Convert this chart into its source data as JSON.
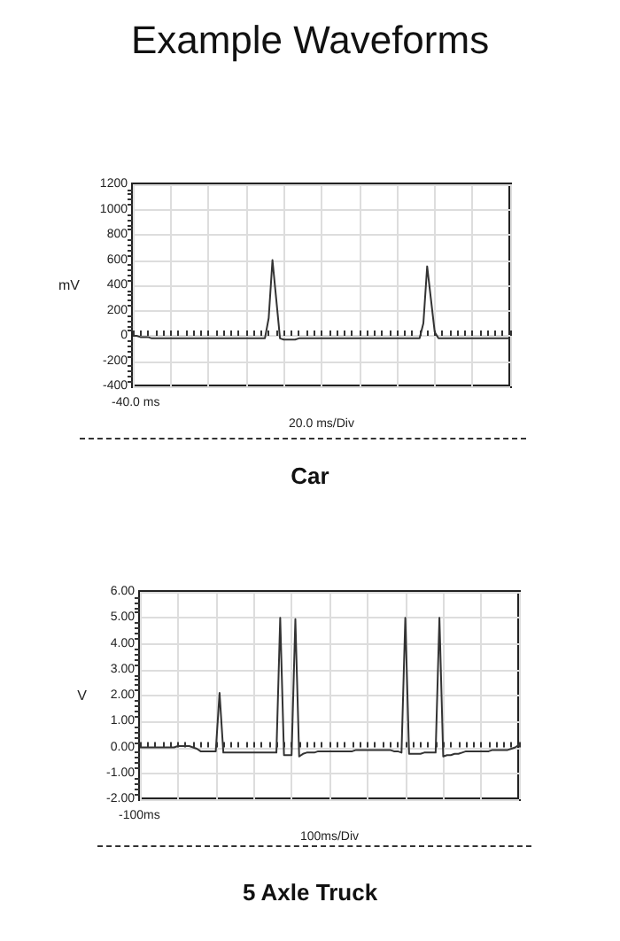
{
  "chart_data": [
    {
      "type": "line",
      "title": "Car",
      "annotations": [
        "Example Waveforms",
        "-40.0 ms"
      ],
      "xlabel": "20.0 ms/Div",
      "ylabel": "mV",
      "categories": [
        null,
        null,
        null,
        null,
        null,
        null,
        null,
        null,
        null,
        null,
        null,
        null,
        null,
        null,
        null,
        null,
        null,
        null,
        null,
        null,
        null,
        null,
        null,
        null,
        null,
        null,
        null,
        null,
        null,
        null,
        null,
        null,
        null,
        null,
        null,
        null,
        null,
        null,
        null,
        null,
        null,
        null,
        null,
        null,
        null,
        null,
        null,
        null,
        null,
        null,
        null,
        null,
        null,
        null,
        null,
        null,
        null,
        null,
        null,
        null,
        null,
        null,
        null,
        null,
        null,
        null,
        null,
        null,
        null,
        null,
        null,
        null,
        null,
        null,
        null,
        null,
        null,
        null,
        null,
        null,
        null,
        null,
        null,
        null,
        null,
        null,
        null,
        null,
        null,
        null,
        null,
        null,
        null,
        null,
        null,
        null,
        null,
        null,
        null,
        null,
        null
      ],
      "ylim": [
        -400,
        1200
      ],
      "yticks": [
        -400,
        -200,
        0,
        200,
        400,
        600,
        800,
        1000,
        1200
      ],
      "grid": true,
      "marker": "none",
      "series": [
        {
          "color": "#333333",
          "values": [
            0,
            0,
            -10,
            -10,
            -10,
            -20,
            -20,
            -20,
            -20,
            -20,
            -20,
            -20,
            -20,
            -20,
            -20,
            -20,
            -20,
            -20,
            -20,
            -20,
            -20,
            -20,
            -20,
            -20,
            -20,
            -20,
            -20,
            -20,
            -20,
            -20,
            -20,
            -20,
            -20,
            -20,
            -20,
            -20,
            140,
            600,
            290,
            -20,
            -30,
            -30,
            -30,
            -30,
            -20,
            -20,
            -20,
            -20,
            -20,
            -20,
            -20,
            -20,
            -20,
            -20,
            -20,
            -20,
            -20,
            -20,
            -20,
            -20,
            -20,
            -20,
            -20,
            -20,
            -20,
            -20,
            -20,
            -20,
            -20,
            -20,
            -20,
            -20,
            -20,
            -20,
            -20,
            -20,
            -20,
            100,
            550,
            290,
            30,
            -20,
            -20,
            -20,
            -20,
            -20,
            -20,
            -20,
            -20,
            -20,
            -20,
            -20,
            -20,
            -20,
            -20,
            -20,
            -20,
            -20,
            -20,
            -20,
            -20
          ]
        }
      ]
    },
    {
      "type": "line",
      "title": "5 Axle Truck",
      "annotations": [
        "-100ms"
      ],
      "xlabel": "100ms/Div",
      "ylabel": "V",
      "categories": [
        null,
        null,
        null,
        null,
        null,
        null,
        null,
        null,
        null,
        null,
        null,
        null,
        null,
        null,
        null,
        null,
        null,
        null,
        null,
        null,
        null,
        null,
        null,
        null,
        null,
        null,
        null,
        null,
        null,
        null,
        null,
        null,
        null,
        null,
        null,
        null,
        null,
        null,
        null,
        null,
        null,
        null,
        null,
        null,
        null,
        null,
        null,
        null,
        null,
        null,
        null,
        null,
        null,
        null,
        null,
        null,
        null,
        null,
        null,
        null,
        null,
        null,
        null,
        null,
        null,
        null,
        null,
        null,
        null,
        null,
        null,
        null,
        null,
        null,
        null,
        null,
        null,
        null,
        null,
        null,
        null,
        null,
        null,
        null,
        null,
        null,
        null,
        null,
        null,
        null,
        null,
        null,
        null,
        null,
        null,
        null,
        null,
        null,
        null,
        null,
        null
      ],
      "ylim": [
        -2,
        6
      ],
      "yticks": [
        {
          "value": -2,
          "label": "-2.00"
        },
        {
          "value": -1,
          "label": "-1.00"
        },
        {
          "value": 0,
          "label": "0.00"
        },
        {
          "value": 1,
          "label": "1.00"
        },
        {
          "value": 2,
          "label": "2.00"
        },
        {
          "value": 3,
          "label": "3.00"
        },
        {
          "value": 4,
          "label": "4.00"
        },
        {
          "value": 5,
          "label": "5.00"
        },
        {
          "value": 6,
          "label": "6.00"
        }
      ],
      "grid": true,
      "marker": "none",
      "series": [
        {
          "color": "#333333",
          "values": [
            0,
            0,
            0,
            0,
            0,
            0,
            0,
            0,
            0,
            0,
            0.05,
            0.05,
            0.05,
            0.05,
            0,
            -0.05,
            -0.15,
            -0.15,
            -0.15,
            -0.15,
            -0.15,
            2.1,
            -0.2,
            -0.2,
            -0.2,
            -0.2,
            -0.2,
            -0.2,
            -0.2,
            -0.2,
            -0.2,
            -0.2,
            -0.2,
            -0.2,
            -0.2,
            -0.2,
            -0.2,
            5.0,
            -0.3,
            -0.3,
            -0.3,
            4.95,
            -0.35,
            -0.25,
            -0.2,
            -0.2,
            -0.2,
            -0.15,
            -0.15,
            -0.15,
            -0.15,
            -0.15,
            -0.15,
            -0.15,
            -0.15,
            -0.15,
            -0.15,
            -0.1,
            -0.1,
            -0.1,
            -0.1,
            -0.1,
            -0.1,
            -0.1,
            -0.1,
            -0.1,
            -0.1,
            -0.15,
            -0.15,
            -0.2,
            5.0,
            -0.25,
            -0.25,
            -0.25,
            -0.25,
            -0.2,
            -0.2,
            -0.2,
            -0.2,
            5.0,
            -0.35,
            -0.3,
            -0.3,
            -0.25,
            -0.25,
            -0.2,
            -0.15,
            -0.15,
            -0.15,
            -0.15,
            -0.15,
            -0.15,
            -0.15,
            -0.1,
            -0.1,
            -0.1,
            -0.1,
            -0.1,
            -0.05,
            0,
            0.1
          ]
        }
      ]
    }
  ]
}
